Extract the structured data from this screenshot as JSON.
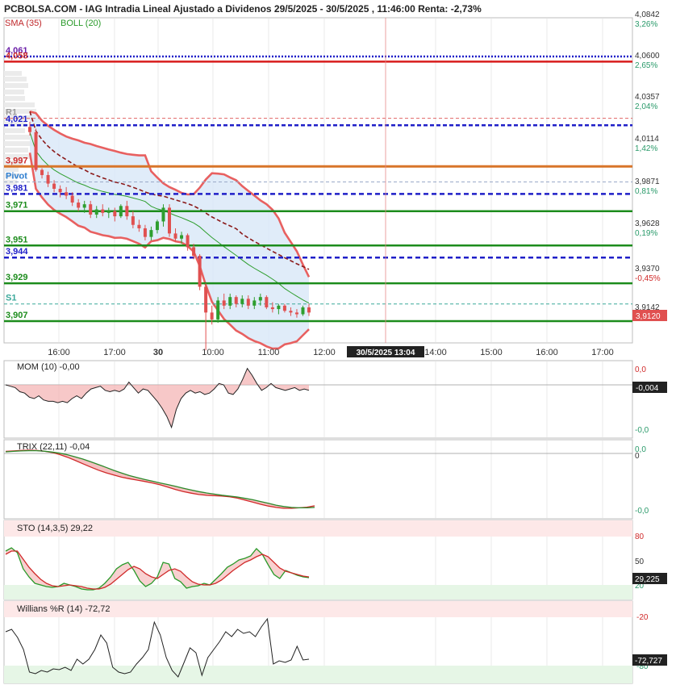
{
  "header": {
    "title": "PCBOLSA.COM - IAG Intradia Lineal Ajustado a Dividenos 29/5/2025 - 30/5/2025 , 11:46:00 Renta: -2,73%",
    "sma_label": "SMA (35)",
    "boll_label": "BOLL (20)"
  },
  "colors": {
    "bull": "#2e9e2e",
    "bear": "#e05050",
    "sma": "#8b1a1a",
    "bollinger": "#e86060",
    "bollinger_fill": "#dbe9f8",
    "support": "#1c8c1c",
    "pivot_blue": "#1f1fc8",
    "resistance_red": "#d81c1c",
    "mom_fill": "#f3b0b0",
    "grid": "#dddddd"
  },
  "chart_data": [
    {
      "type": "candlestick",
      "title": "IAG Intradia Lineal Ajustado a Dividenos",
      "y_axis_right": [
        {
          "price": "4,0842",
          "pct": "3,26%"
        },
        {
          "price": "4,0600",
          "pct": "2,65%"
        },
        {
          "price": "4,0357",
          "pct": "2,04%"
        },
        {
          "price": "4,0114",
          "pct": "1,42%"
        },
        {
          "price": "3,9871",
          "pct": "0,81%"
        },
        {
          "price": "3,9628",
          "pct": "0,19%"
        },
        {
          "price": "3,9370",
          "pct": "-0,45%"
        },
        {
          "price": "3,9142",
          "pct": ""
        }
      ],
      "last_price_badge": "3,9120",
      "x_tick_labels": [
        "16:00",
        "17:00",
        "30",
        "10:00",
        "11:00",
        "12:00",
        "14:00",
        "15:00",
        "16:00",
        "17:00"
      ],
      "cursor_label": "30/5/2025 13:04",
      "levels": [
        {
          "label": "4,061",
          "value": 4.061,
          "kind": "dotted-blue"
        },
        {
          "label": "4,058",
          "value": 4.058,
          "kind": "red"
        },
        {
          "label": "R1",
          "value": 4.025,
          "kind": "dashed-red"
        },
        {
          "label": "4,021",
          "value": 4.021,
          "kind": "blue-orange"
        },
        {
          "label": "3,997",
          "value": 3.997,
          "kind": "red-orange"
        },
        {
          "label": "Pivot",
          "value": 3.988,
          "kind": "dashed-gray"
        },
        {
          "label": "3,981",
          "value": 3.981,
          "kind": "dashed-blue"
        },
        {
          "label": "3,971",
          "value": 3.971,
          "kind": "green"
        },
        {
          "label": "3,951",
          "value": 3.951,
          "kind": "green"
        },
        {
          "label": "3,944",
          "value": 3.944,
          "kind": "dashed-blue"
        },
        {
          "label": "3,929",
          "value": 3.929,
          "kind": "green"
        },
        {
          "label": "S1",
          "value": 3.917,
          "kind": "dashed-teal"
        },
        {
          "label": "3,907",
          "value": 3.907,
          "kind": "green"
        }
      ],
      "candles": [
        {
          "o": 4.02,
          "h": 4.023,
          "l": 4.015,
          "c": 4.017
        },
        {
          "o": 4.017,
          "h": 4.019,
          "l": 3.994,
          "c": 3.995
        },
        {
          "o": 3.995,
          "h": 3.996,
          "l": 3.99,
          "c": 3.992
        },
        {
          "o": 3.992,
          "h": 3.994,
          "l": 3.985,
          "c": 3.987
        },
        {
          "o": 3.987,
          "h": 3.989,
          "l": 3.982,
          "c": 3.984
        },
        {
          "o": 3.984,
          "h": 3.986,
          "l": 3.979,
          "c": 3.982
        },
        {
          "o": 3.982,
          "h": 3.985,
          "l": 3.978,
          "c": 3.98
        },
        {
          "o": 3.98,
          "h": 3.982,
          "l": 3.974,
          "c": 3.976
        },
        {
          "o": 3.976,
          "h": 3.978,
          "l": 3.971,
          "c": 3.973
        },
        {
          "o": 3.973,
          "h": 3.977,
          "l": 3.97,
          "c": 3.975
        },
        {
          "o": 3.975,
          "h": 3.977,
          "l": 3.967,
          "c": 3.969
        },
        {
          "o": 3.969,
          "h": 3.974,
          "l": 3.967,
          "c": 3.972
        },
        {
          "o": 3.972,
          "h": 3.975,
          "l": 3.968,
          "c": 3.97
        },
        {
          "o": 3.97,
          "h": 3.973,
          "l": 3.967,
          "c": 3.971
        },
        {
          "o": 3.971,
          "h": 3.973,
          "l": 3.965,
          "c": 3.968
        },
        {
          "o": 3.968,
          "h": 3.975,
          "l": 3.967,
          "c": 3.974
        },
        {
          "o": 3.974,
          "h": 3.977,
          "l": 3.966,
          "c": 3.968
        },
        {
          "o": 3.968,
          "h": 3.971,
          "l": 3.961,
          "c": 3.963
        },
        {
          "o": 3.963,
          "h": 3.966,
          "l": 3.959,
          "c": 3.961
        },
        {
          "o": 3.961,
          "h": 3.963,
          "l": 3.954,
          "c": 3.956
        },
        {
          "o": 3.956,
          "h": 3.962,
          "l": 3.954,
          "c": 3.96
        },
        {
          "o": 3.96,
          "h": 3.966,
          "l": 3.958,
          "c": 3.965
        },
        {
          "o": 3.965,
          "h": 3.975,
          "l": 3.962,
          "c": 3.973
        },
        {
          "o": 3.973,
          "h": 3.975,
          "l": 3.956,
          "c": 3.958
        },
        {
          "o": 3.958,
          "h": 3.961,
          "l": 3.953,
          "c": 3.955
        },
        {
          "o": 3.955,
          "h": 3.959,
          "l": 3.952,
          "c": 3.957
        },
        {
          "o": 3.957,
          "h": 3.958,
          "l": 3.948,
          "c": 3.95
        },
        {
          "o": 3.95,
          "h": 3.952,
          "l": 3.943,
          "c": 3.945
        },
        {
          "o": 3.945,
          "h": 3.946,
          "l": 3.925,
          "c": 3.927
        },
        {
          "o": 3.927,
          "h": 3.929,
          "l": 3.89,
          "c": 3.912
        },
        {
          "o": 3.912,
          "h": 3.916,
          "l": 3.905,
          "c": 3.908
        },
        {
          "o": 3.908,
          "h": 3.921,
          "l": 3.906,
          "c": 3.919
        },
        {
          "o": 3.919,
          "h": 3.923,
          "l": 3.914,
          "c": 3.916
        },
        {
          "o": 3.916,
          "h": 3.923,
          "l": 3.914,
          "c": 3.921
        },
        {
          "o": 3.921,
          "h": 3.922,
          "l": 3.915,
          "c": 3.917
        },
        {
          "o": 3.917,
          "h": 3.922,
          "l": 3.915,
          "c": 3.92
        },
        {
          "o": 3.92,
          "h": 3.922,
          "l": 3.914,
          "c": 3.916
        },
        {
          "o": 3.916,
          "h": 3.921,
          "l": 3.914,
          "c": 3.919
        },
        {
          "o": 3.919,
          "h": 3.923,
          "l": 3.916,
          "c": 3.921
        },
        {
          "o": 3.921,
          "h": 3.922,
          "l": 3.914,
          "c": 3.915
        },
        {
          "o": 3.915,
          "h": 3.918,
          "l": 3.912,
          "c": 3.914
        },
        {
          "o": 3.914,
          "h": 3.917,
          "l": 3.911,
          "c": 3.916
        },
        {
          "o": 3.916,
          "h": 3.917,
          "l": 3.912,
          "c": 3.913
        },
        {
          "o": 3.913,
          "h": 3.915,
          "l": 3.91,
          "c": 3.912
        },
        {
          "o": 3.912,
          "h": 3.914,
          "l": 3.909,
          "c": 3.911
        },
        {
          "o": 3.911,
          "h": 3.916,
          "l": 3.91,
          "c": 3.915
        },
        {
          "o": 3.915,
          "h": 3.917,
          "l": 3.91,
          "c": 3.912
        }
      ]
    },
    {
      "type": "line",
      "title": "MOM (10)",
      "title_value": "-0,00",
      "y_labels": [
        "0,0",
        "-0,0"
      ],
      "last_value": "-0,004",
      "values": [
        0.0,
        -0.001,
        -0.002,
        -0.005,
        -0.006,
        -0.009,
        -0.01,
        -0.008,
        -0.011,
        -0.012,
        -0.012,
        -0.013,
        -0.012,
        -0.013,
        -0.01,
        -0.008,
        -0.01,
        -0.006,
        -0.003,
        -0.002,
        -0.001,
        -0.004,
        -0.005,
        -0.004,
        -0.005,
        -0.003,
        0.002,
        -0.002,
        -0.006,
        -0.003,
        -0.004,
        -0.008,
        -0.012,
        -0.017,
        -0.023,
        -0.031,
        -0.018,
        -0.01,
        -0.006,
        -0.004,
        -0.006,
        -0.005,
        -0.007,
        -0.006,
        -0.003,
        0.001,
        0.0,
        -0.006,
        -0.007,
        -0.003,
        0.004,
        0.012,
        0.007,
        0.001,
        -0.004,
        -0.002,
        0.001,
        -0.002,
        -0.003,
        -0.004,
        -0.003,
        -0.002,
        -0.004,
        -0.003,
        -0.004
      ]
    },
    {
      "type": "line",
      "title": "TRIX (22,11)",
      "title_value": "-0,04",
      "y_labels": [
        "0,0",
        "0",
        "-0,0"
      ],
      "series": [
        {
          "values": [
            0.2,
            0.4,
            0.6,
            0.7,
            0.6,
            0.3,
            -0.3,
            -1.2,
            -2.4,
            -3.8,
            -5.3,
            -6.7,
            -8.1,
            -9.3,
            -10.3,
            -11.2,
            -11.9,
            -12.5,
            -13.1,
            -13.8,
            -14.6,
            -15.6,
            -16.7,
            -17.6,
            -18.3,
            -18.9,
            -19.2,
            -19.4,
            -19.6,
            -19.9,
            -20.5,
            -21.4,
            -22.3,
            -23.2,
            -24.0,
            -24.6,
            -25.0,
            -25.0,
            -24.8,
            -24.5,
            -23.9
          ]
        },
        {
          "values": [
            0.0,
            0.2,
            0.4,
            0.5,
            0.5,
            0.3,
            -0.1,
            -0.6,
            -1.3,
            -2.2,
            -3.2,
            -4.4,
            -5.6,
            -6.9,
            -8.2,
            -9.4,
            -10.5,
            -11.4,
            -12.2,
            -13.0,
            -13.8,
            -14.5,
            -15.3,
            -16.1,
            -16.9,
            -17.6,
            -18.2,
            -18.7,
            -19.2,
            -19.6,
            -20.0,
            -20.6,
            -21.2,
            -22.0,
            -22.8,
            -23.6,
            -24.2,
            -24.6,
            -24.8,
            -24.8,
            -24.6
          ]
        }
      ]
    },
    {
      "type": "line",
      "title": "STO (14,3,5)",
      "title_value": "29,22",
      "y_labels": [
        "80",
        "50",
        "20"
      ],
      "last_value": "29,225",
      "series": [
        {
          "values": [
            62,
            66,
            60,
            40,
            30,
            22,
            20,
            18,
            17,
            18,
            22,
            20,
            18,
            15,
            14,
            14,
            16,
            22,
            30,
            40,
            45,
            48,
            38,
            25,
            18,
            22,
            30,
            48,
            46,
            28,
            24,
            16,
            18,
            19,
            22,
            20,
            27,
            34,
            42,
            46,
            51,
            53,
            56,
            65,
            58,
            45,
            33,
            28,
            38,
            35,
            32,
            30,
            29
          ]
        },
        {
          "values": [
            58,
            62,
            62,
            52,
            42,
            34,
            27,
            22,
            19,
            18,
            19,
            20,
            19,
            18,
            16,
            15,
            15,
            17,
            21,
            27,
            33,
            39,
            43,
            40,
            34,
            30,
            28,
            33,
            38,
            40,
            37,
            30,
            24,
            21,
            20,
            20,
            22,
            26,
            32,
            38,
            43,
            48,
            51,
            55,
            58,
            55,
            48,
            41,
            37,
            35,
            33,
            31,
            30
          ]
        }
      ]
    },
    {
      "type": "line",
      "title": "Willians %R (14)",
      "title_value": "-72,72",
      "y_labels": [
        "-20",
        "-80"
      ],
      "last_value": "-72,727",
      "values": [
        -38,
        -35,
        -45,
        -60,
        -88,
        -90,
        -86,
        -88,
        -84,
        -85,
        -82,
        -86,
        -72,
        -78,
        -72,
        -60,
        -42,
        -52,
        -82,
        -88,
        -90,
        -88,
        -78,
        -70,
        -60,
        -26,
        -42,
        -70,
        -86,
        -94,
        -76,
        -58,
        -64,
        -92,
        -70,
        -60,
        -50,
        -38,
        -44,
        -35,
        -40,
        -38,
        -44,
        -32,
        -22,
        -78,
        -74,
        -76,
        -73,
        -56,
        -73,
        -72
      ]
    }
  ]
}
